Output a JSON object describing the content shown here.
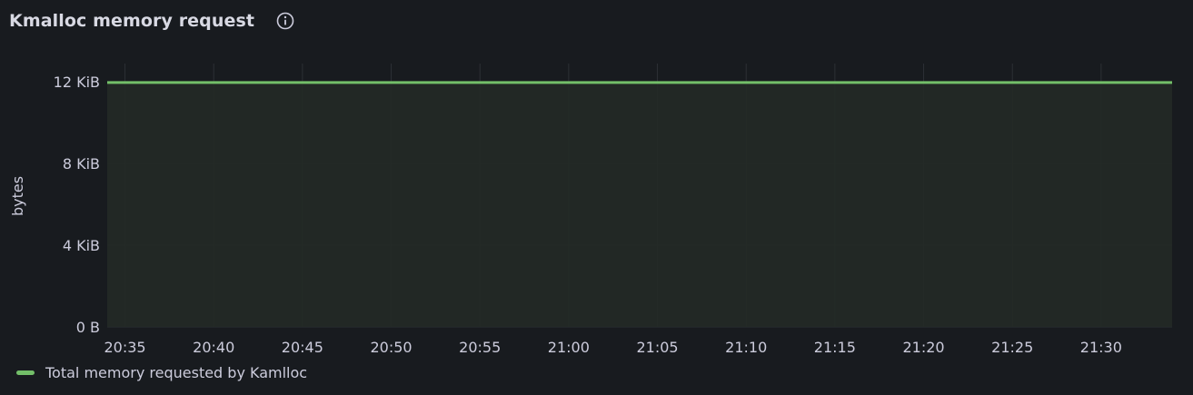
{
  "panel": {
    "title": "Kmalloc memory request",
    "info_icon": "info-circle-icon"
  },
  "colors": {
    "series": "#73bf69",
    "fill": "#232a26",
    "grid": "#2c3035",
    "background": "#181b1f"
  },
  "chart_data": {
    "type": "area",
    "title": "Kmalloc memory request",
    "ylabel": "bytes",
    "xlabel": "",
    "x_unit": "time",
    "x_range": [
      "20:34",
      "21:34"
    ],
    "x_ticks": [
      "20:35",
      "20:40",
      "20:45",
      "20:50",
      "20:55",
      "21:00",
      "21:05",
      "21:10",
      "21:15",
      "21:20",
      "21:25",
      "21:30"
    ],
    "y_ticks": [
      {
        "value": 0,
        "label": "0 B"
      },
      {
        "value": 4096,
        "label": "4 KiB"
      },
      {
        "value": 8192,
        "label": "8 KiB"
      },
      {
        "value": 12288,
        "label": "12 KiB"
      }
    ],
    "ylim": [
      0,
      13200
    ],
    "grid": true,
    "legend_position": "bottom-left",
    "series": [
      {
        "name": "Total memory requested by Kamlloc",
        "x": [
          "20:34",
          "20:40",
          "20:50",
          "21:00",
          "21:10",
          "21:20",
          "21:30",
          "21:34"
        ],
        "values": [
          12250,
          12250,
          12250,
          12250,
          12250,
          12250,
          12250,
          12250
        ]
      }
    ]
  }
}
